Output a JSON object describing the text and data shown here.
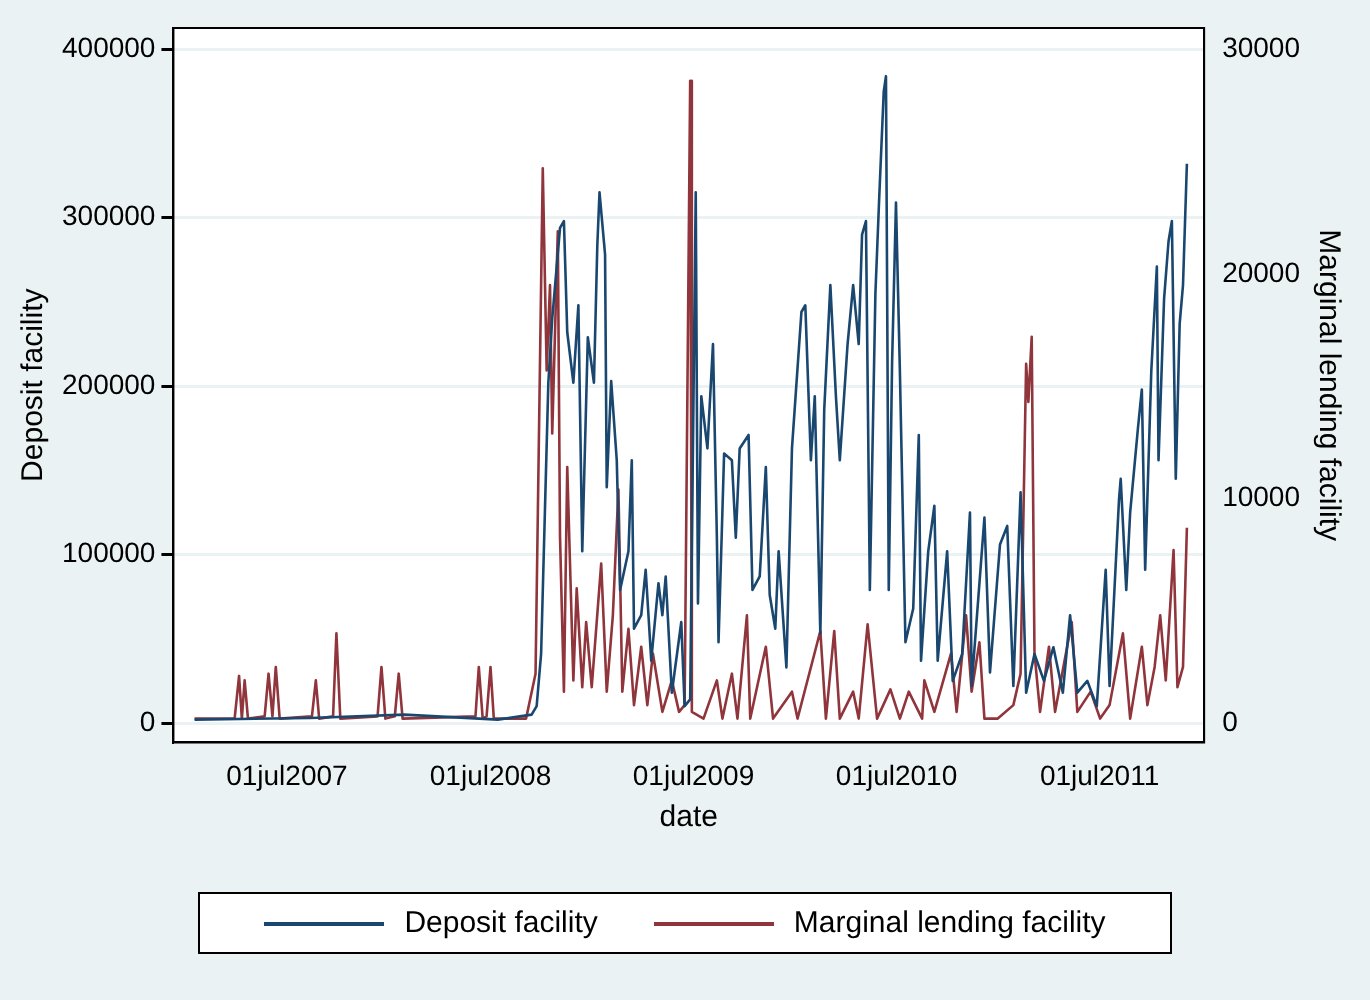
{
  "chart_data": {
    "type": "line",
    "xlabel": "date",
    "ylabel": "Deposit facility",
    "y2label": "Marginal lending facility",
    "legend": "bottom",
    "grid": "y",
    "marker": "none",
    "xlim": [
      "2006-12-09",
      "2012-01-05"
    ],
    "xticks": [
      {
        "value": "2007-07-01",
        "label": "01jul2007"
      },
      {
        "value": "2008-07-01",
        "label": "01jul2008"
      },
      {
        "value": "2009-07-01",
        "label": "01jul2009"
      },
      {
        "value": "2010-07-01",
        "label": "01jul2010"
      },
      {
        "value": "2011-07-01",
        "label": "01jul2011"
      }
    ],
    "ylim": [
      -11500,
      412600
    ],
    "yticks": [
      0,
      100000,
      200000,
      300000,
      400000
    ],
    "y2lim": [
      -860,
      30950
    ],
    "y2ticks": [
      0,
      10000,
      20000,
      30000
    ],
    "series": [
      {
        "name": "Deposit facility",
        "color": "#1a476f",
        "x": [
          "2007-01-16",
          "2007-08-12",
          "2008-01-28",
          "2008-07-14",
          "2008-09-13",
          "2008-09-22",
          "2008-09-30",
          "2008-10-13",
          "2008-10-20",
          "2008-11-03",
          "2008-11-10",
          "2008-11-16",
          "2008-11-27",
          "2008-12-06",
          "2008-12-13",
          "2008-12-23",
          "2009-01-03",
          "2009-01-09",
          "2009-01-13",
          "2009-01-23",
          "2009-01-26",
          "2009-02-03",
          "2009-02-13",
          "2009-02-19",
          "2009-03-06",
          "2009-03-12",
          "2009-03-16",
          "2009-03-29",
          "2009-04-06",
          "2009-04-16",
          "2009-04-29",
          "2009-05-06",
          "2009-05-12",
          "2009-05-23",
          "2009-06-09",
          "2009-06-15",
          "2009-06-25",
          "2009-07-05",
          "2009-07-09",
          "2009-07-15",
          "2009-07-26",
          "2009-08-05",
          "2009-08-12",
          "2009-08-15",
          "2009-08-25",
          "2009-09-08",
          "2009-09-15",
          "2009-09-22",
          "2009-10-08",
          "2009-10-15",
          "2009-10-28",
          "2009-11-08",
          "2009-11-15",
          "2009-11-25",
          "2009-12-01",
          "2009-12-15",
          "2009-12-25",
          "2010-01-11",
          "2010-01-18",
          "2010-01-28",
          "2010-02-04",
          "2010-02-14",
          "2010-02-21",
          "2010-03-04",
          "2010-03-14",
          "2010-03-21",
          "2010-04-04",
          "2010-04-14",
          "2010-04-24",
          "2010-04-30",
          "2010-05-07",
          "2010-05-14",
          "2010-05-24",
          "2010-05-31",
          "2010-06-08",
          "2010-06-12",
          "2010-06-17",
          "2010-06-23",
          "2010-06-30",
          "2010-07-07",
          "2010-07-17",
          "2010-07-31",
          "2010-08-10",
          "2010-08-14",
          "2010-08-27",
          "2010-09-07",
          "2010-09-13",
          "2010-09-30",
          "2010-10-10",
          "2010-10-27",
          "2010-11-10",
          "2010-11-13",
          "2010-12-06",
          "2010-12-16",
          "2011-01-03",
          "2011-01-16",
          "2011-01-27",
          "2011-02-09",
          "2011-02-19",
          "2011-03-06",
          "2011-03-23",
          "2011-04-09",
          "2011-04-26",
          "2011-05-09",
          "2011-05-22",
          "2011-06-09",
          "2011-06-26",
          "2011-07-12",
          "2011-07-19",
          "2011-08-05",
          "2011-08-08",
          "2011-08-18",
          "2011-08-25",
          "2011-09-08",
          "2011-09-15",
          "2011-09-21",
          "2011-10-02",
          "2011-10-12",
          "2011-10-15",
          "2011-10-25",
          "2011-11-02",
          "2011-11-08",
          "2011-11-15",
          "2011-11-22",
          "2011-11-28",
          "2011-12-05"
        ],
        "values": [
          2000,
          3000,
          5000,
          2000,
          5000,
          10000,
          41000,
          202000,
          240000,
          294000,
          298000,
          232000,
          202000,
          248000,
          102000,
          229000,
          202000,
          283000,
          315000,
          278000,
          140000,
          203000,
          156000,
          79000,
          102000,
          156000,
          56000,
          64000,
          91000,
          37000,
          83000,
          64000,
          87000,
          18000,
          60000,
          10000,
          14000,
          315000,
          71000,
          194000,
          163000,
          225000,
          110000,
          48000,
          160000,
          156000,
          110000,
          163000,
          171000,
          79000,
          87000,
          152000,
          76000,
          56000,
          102000,
          33000,
          163000,
          244000,
          248000,
          156000,
          194000,
          53000,
          186000,
          260000,
          194000,
          156000,
          225000,
          260000,
          225000,
          290000,
          298000,
          79000,
          255000,
          313000,
          375000,
          384000,
          79000,
          214000,
          309000,
          209000,
          48000,
          68000,
          171000,
          37000,
          102000,
          129000,
          37000,
          102000,
          25000,
          41000,
          125000,
          22000,
          122000,
          30000,
          106000,
          117000,
          22000,
          137000,
          18000,
          41000,
          25000,
          45000,
          18000,
          64000,
          18000,
          25000,
          10000,
          91000,
          22000,
          133000,
          145000,
          79000,
          125000,
          175000,
          198000,
          91000,
          209000,
          271000,
          156000,
          252000,
          286000,
          298000,
          145000,
          237000,
          260000,
          332000
        ]
      },
      {
        "name": "Marginal lending facility",
        "color": "#90353b",
        "axis": "y2",
        "x": [
          "2007-01-16",
          "2007-03-29",
          "2007-04-06",
          "2007-04-11",
          "2007-04-16",
          "2007-04-22",
          "2007-05-22",
          "2007-05-29",
          "2007-06-05",
          "2007-06-11",
          "2007-06-18",
          "2007-08-15",
          "2007-08-22",
          "2007-08-28",
          "2007-09-22",
          "2007-09-28",
          "2007-10-05",
          "2007-12-11",
          "2007-12-18",
          "2007-12-25",
          "2008-01-11",
          "2008-01-18",
          "2008-01-25",
          "2008-06-04",
          "2008-06-10",
          "2008-06-17",
          "2008-06-24",
          "2008-07-01",
          "2008-07-07",
          "2008-09-03",
          "2008-09-20",
          "2008-10-03",
          "2008-10-10",
          "2008-10-16",
          "2008-10-20",
          "2008-10-30",
          "2008-11-03",
          "2008-11-10",
          "2008-11-16",
          "2008-11-27",
          "2008-12-03",
          "2008-12-13",
          "2008-12-20",
          "2008-12-30",
          "2009-01-16",
          "2009-01-26",
          "2009-02-06",
          "2009-02-16",
          "2009-02-23",
          "2009-03-06",
          "2009-03-16",
          "2009-03-29",
          "2009-04-09",
          "2009-04-19",
          "2009-05-06",
          "2009-05-23",
          "2009-06-05",
          "2009-06-15",
          "2009-06-25",
          "2009-06-28",
          "2009-07-19",
          "2009-08-12",
          "2009-08-22",
          "2009-09-08",
          "2009-09-18",
          "2009-10-05",
          "2009-10-11",
          "2009-11-08",
          "2009-11-21",
          "2009-12-25",
          "2010-01-04",
          "2010-02-14",
          "2010-02-24",
          "2010-03-11",
          "2010-03-21",
          "2010-04-14",
          "2010-04-24",
          "2010-05-10",
          "2010-05-27",
          "2010-06-20",
          "2010-07-07",
          "2010-07-23",
          "2010-08-16",
          "2010-08-20",
          "2010-09-07",
          "2010-10-07",
          "2010-10-17",
          "2010-11-03",
          "2010-11-13",
          "2010-11-27",
          "2010-12-06",
          "2010-12-30",
          "2011-01-27",
          "2011-02-09",
          "2011-02-19",
          "2011-02-23",
          "2011-03-01",
          "2011-03-06",
          "2011-03-16",
          "2011-04-01",
          "2011-04-12",
          "2011-05-12",
          "2011-05-22",
          "2011-06-15",
          "2011-07-02",
          "2011-07-19",
          "2011-08-12",
          "2011-08-25",
          "2011-09-15",
          "2011-09-25",
          "2011-10-08",
          "2011-10-18",
          "2011-10-28",
          "2011-11-11",
          "2011-11-18",
          "2011-11-28",
          "2011-12-05"
        ],
        "values": [
          200,
          200,
          2100,
          200,
          1900,
          200,
          300,
          2200,
          300,
          2500,
          200,
          300,
          1900,
          200,
          300,
          4000,
          200,
          300,
          2500,
          200,
          300,
          2200,
          200,
          300,
          2500,
          200,
          300,
          2500,
          200,
          200,
          2200,
          24700,
          15700,
          19500,
          12900,
          21900,
          8300,
          1400,
          11400,
          1900,
          6000,
          1600,
          4500,
          1600,
          7100,
          1400,
          4800,
          10400,
          1400,
          4200,
          800,
          3400,
          800,
          3100,
          500,
          1900,
          500,
          800,
          28600,
          500,
          200,
          1900,
          200,
          2200,
          200,
          4800,
          200,
          3400,
          200,
          1400,
          200,
          4100,
          200,
          4100,
          200,
          1400,
          200,
          4400,
          200,
          1500,
          200,
          1400,
          200,
          1900,
          500,
          3100,
          500,
          4800,
          1400,
          3600,
          200,
          200,
          800,
          2200,
          16000,
          14300,
          17200,
          3100,
          500,
          3400,
          500,
          4500,
          500,
          1400,
          200,
          800,
          4000,
          200,
          3400,
          800,
          2500,
          4800,
          1900,
          7700,
          1600,
          2500,
          8700
        ]
      }
    ]
  }
}
